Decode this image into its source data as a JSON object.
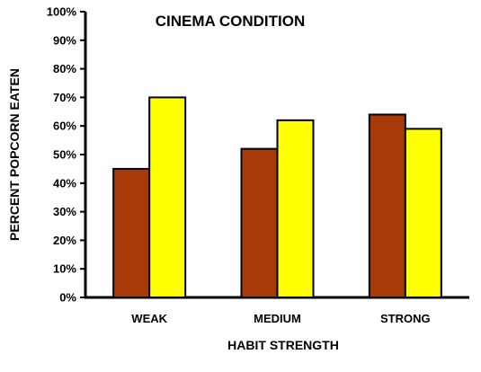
{
  "chart_data": {
    "type": "bar",
    "title": "CINEMA CONDITION",
    "xlabel": "HABIT STRENGTH",
    "ylabel": "PERCENT POPCORN EATEN",
    "categories": [
      "WEAK",
      "MEDIUM",
      "STRONG"
    ],
    "series": [
      {
        "values": [
          45,
          52,
          64
        ],
        "color": "#a83a0a"
      },
      {
        "values": [
          70,
          62,
          59
        ],
        "color": "#ffff00"
      }
    ],
    "ylim": [
      0,
      100
    ],
    "yticks": [
      "0%",
      "10%",
      "20%",
      "30%",
      "40%",
      "50%",
      "60%",
      "70%",
      "80%",
      "90%",
      "100%"
    ],
    "grid": false,
    "legend": "none"
  }
}
